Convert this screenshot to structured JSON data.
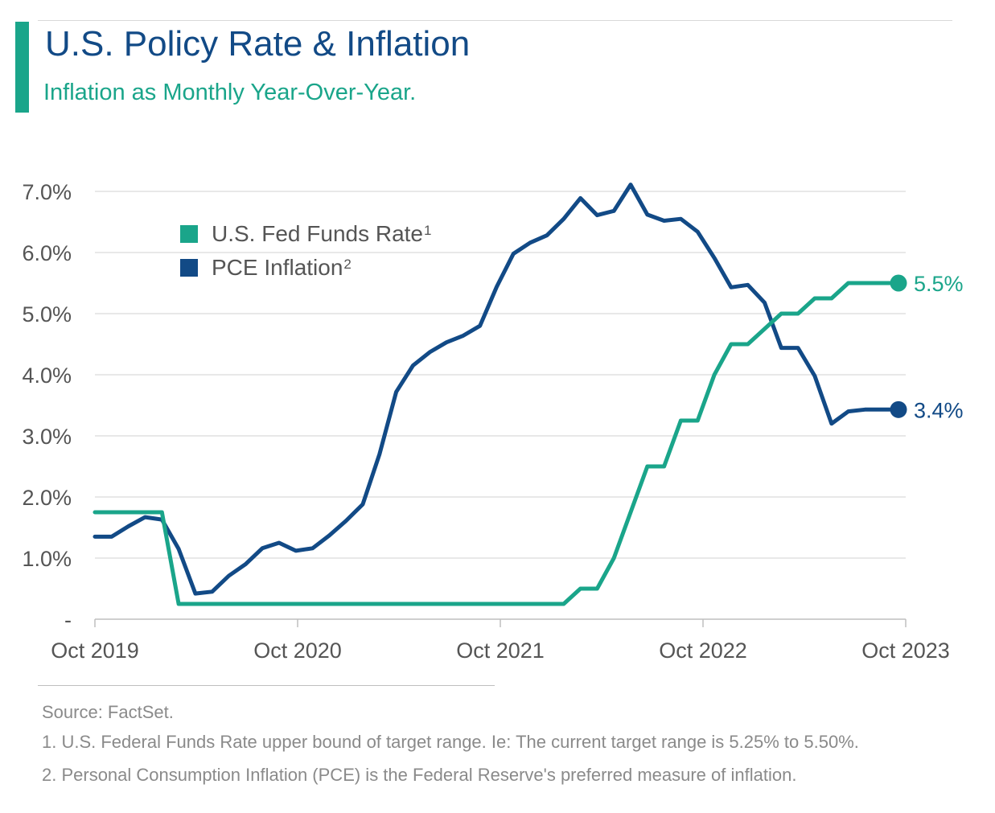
{
  "header": {
    "title": "U.S. Policy Rate & Inflation",
    "subtitle": "Inflation as Monthly Year-Over-Year."
  },
  "legend": {
    "items": [
      {
        "label": "U.S. Fed Funds Rate",
        "sup": "1",
        "color": "#1aa58a"
      },
      {
        "label": "PCE Inflation",
        "sup": "2",
        "color": "#124a86"
      }
    ]
  },
  "end_labels": {
    "fed": "5.5%",
    "pce": "3.4%"
  },
  "footer": {
    "source": "Source: FactSet.",
    "note1": "1. U.S. Federal Funds Rate upper bound of target range. Ie: The current target range is 5.25% to 5.50%.",
    "note2": "2. Personal Consumption Inflation (PCE) is the Federal Reserve's preferred measure of inflation."
  },
  "chart_data": {
    "type": "line",
    "ylim": [
      0,
      7.0
    ],
    "y_ticks": [
      {
        "value": 0,
        "label": "-"
      },
      {
        "value": 1,
        "label": "1.0%"
      },
      {
        "value": 2,
        "label": "2.0%"
      },
      {
        "value": 3,
        "label": "3.0%"
      },
      {
        "value": 4,
        "label": "4.0%"
      },
      {
        "value": 5,
        "label": "5.0%"
      },
      {
        "value": 6,
        "label": "6.0%"
      },
      {
        "value": 7,
        "label": "7.0%"
      }
    ],
    "x_ticks": [
      "Oct 2019",
      "Oct 2020",
      "Oct 2021",
      "Oct 2022",
      "Oct 2023"
    ],
    "grid": true,
    "legend_position": "top-left",
    "x": [
      "Oct 2019",
      "Nov 2019",
      "Dec 2019",
      "Jan 2020",
      "Feb 2020",
      "Mar 2020",
      "Apr 2020",
      "May 2020",
      "Jun 2020",
      "Jul 2020",
      "Aug 2020",
      "Sep 2020",
      "Oct 2020",
      "Nov 2020",
      "Dec 2020",
      "Jan 2021",
      "Feb 2021",
      "Mar 2021",
      "Apr 2021",
      "May 2021",
      "Jun 2021",
      "Jul 2021",
      "Aug 2021",
      "Sep 2021",
      "Oct 2021",
      "Nov 2021",
      "Dec 2021",
      "Jan 2022",
      "Feb 2022",
      "Mar 2022",
      "Apr 2022",
      "May 2022",
      "Jun 2022",
      "Jul 2022",
      "Aug 2022",
      "Sep 2022",
      "Oct 2022",
      "Nov 2022",
      "Dec 2022",
      "Jan 2023",
      "Feb 2023",
      "Mar 2023",
      "Apr 2023",
      "May 2023",
      "Jun 2023",
      "Jul 2023",
      "Aug 2023",
      "Sep 2023",
      "Oct 2023"
    ],
    "series": [
      {
        "name": "U.S. Fed Funds Rate",
        "color": "#1aa58a",
        "values": [
          1.75,
          1.75,
          1.75,
          1.75,
          1.75,
          0.25,
          0.25,
          0.25,
          0.25,
          0.25,
          0.25,
          0.25,
          0.25,
          0.25,
          0.25,
          0.25,
          0.25,
          0.25,
          0.25,
          0.25,
          0.25,
          0.25,
          0.25,
          0.25,
          0.25,
          0.25,
          0.25,
          0.25,
          0.25,
          0.5,
          0.5,
          1.0,
          1.75,
          2.5,
          2.5,
          3.25,
          3.25,
          4.0,
          4.5,
          4.5,
          4.75,
          5.0,
          5.0,
          5.25,
          5.25,
          5.5,
          5.5,
          5.5,
          5.5
        ]
      },
      {
        "name": "PCE Inflation",
        "color": "#124a86",
        "values": [
          1.35,
          1.35,
          1.52,
          1.67,
          1.63,
          1.15,
          0.42,
          0.45,
          0.71,
          0.9,
          1.16,
          1.25,
          1.12,
          1.16,
          1.37,
          1.61,
          1.88,
          2.7,
          3.72,
          4.15,
          4.37,
          4.53,
          4.64,
          4.8,
          5.44,
          5.98,
          6.16,
          6.28,
          6.55,
          6.89,
          6.61,
          6.68,
          7.11,
          6.62,
          6.52,
          6.55,
          6.34,
          5.91,
          5.43,
          5.47,
          5.18,
          4.44,
          4.44,
          3.98,
          3.2,
          3.4,
          3.43,
          3.43,
          3.43
        ]
      }
    ]
  }
}
